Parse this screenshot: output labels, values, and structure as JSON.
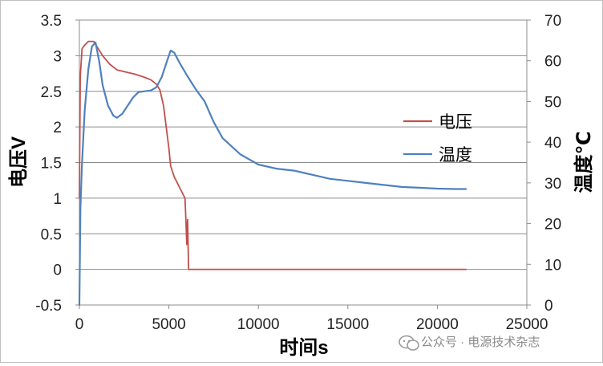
{
  "chart_data": {
    "type": "line",
    "title": "",
    "xlabel": "时间s",
    "ylabel": "电压V",
    "y2label": "温度℃",
    "xlim": [
      0,
      25000
    ],
    "ylim": [
      -0.5,
      3.5
    ],
    "y2lim": [
      0,
      70
    ],
    "x_ticks": [
      "0",
      "5000",
      "10000",
      "15000",
      "20000",
      "25000"
    ],
    "y_ticks": [
      "-0.5",
      "0",
      "0.5",
      "1",
      "1.5",
      "2",
      "2.5",
      "3",
      "3.5"
    ],
    "y2_ticks": [
      "0",
      "10",
      "20",
      "30",
      "40",
      "50",
      "60",
      "70"
    ],
    "grid": "horizontal",
    "legend_position": "right",
    "series": [
      {
        "name": "电压",
        "axis": "left",
        "color": "#c0504d",
        "points": [
          [
            0,
            1.0
          ],
          [
            50,
            2.7
          ],
          [
            150,
            3.1
          ],
          [
            300,
            3.15
          ],
          [
            500,
            3.2
          ],
          [
            800,
            3.2
          ],
          [
            1000,
            3.12
          ],
          [
            1300,
            3.0
          ],
          [
            1700,
            2.88
          ],
          [
            2100,
            2.8
          ],
          [
            2600,
            2.77
          ],
          [
            3100,
            2.74
          ],
          [
            3600,
            2.7
          ],
          [
            4000,
            2.66
          ],
          [
            4300,
            2.6
          ],
          [
            4500,
            2.52
          ],
          [
            4700,
            2.3
          ],
          [
            4900,
            1.9
          ],
          [
            5000,
            1.7
          ],
          [
            5100,
            1.45
          ],
          [
            5300,
            1.3
          ],
          [
            5600,
            1.15
          ],
          [
            5900,
            1.0
          ],
          [
            5950,
            0.7
          ],
          [
            6000,
            0.35
          ],
          [
            6050,
            0.7
          ],
          [
            6100,
            0.0
          ],
          [
            8000,
            0.0
          ],
          [
            12000,
            0.0
          ],
          [
            16000,
            0.0
          ],
          [
            20000,
            0.0
          ],
          [
            21600,
            0.0
          ]
        ]
      },
      {
        "name": "温度",
        "axis": "right",
        "color": "#4f81bd",
        "points": [
          [
            0,
            0
          ],
          [
            60,
            24
          ],
          [
            150,
            35
          ],
          [
            300,
            48
          ],
          [
            500,
            58
          ],
          [
            700,
            63.5
          ],
          [
            900,
            64.5
          ],
          [
            1100,
            60
          ],
          [
            1300,
            54
          ],
          [
            1600,
            49
          ],
          [
            1900,
            46.5
          ],
          [
            2100,
            46
          ],
          [
            2400,
            47
          ],
          [
            2700,
            49
          ],
          [
            3000,
            51
          ],
          [
            3300,
            52.3
          ],
          [
            3600,
            52.5
          ],
          [
            4000,
            52.7
          ],
          [
            4300,
            53.5
          ],
          [
            4600,
            56
          ],
          [
            4900,
            60
          ],
          [
            5100,
            62.5
          ],
          [
            5300,
            62
          ],
          [
            5600,
            59.5
          ],
          [
            6000,
            56.5
          ],
          [
            6500,
            53
          ],
          [
            7000,
            50
          ],
          [
            7500,
            45
          ],
          [
            8000,
            41
          ],
          [
            9000,
            37
          ],
          [
            10000,
            34.5
          ],
          [
            11000,
            33.5
          ],
          [
            12000,
            33
          ],
          [
            13000,
            32
          ],
          [
            14000,
            31
          ],
          [
            15000,
            30.5
          ],
          [
            16000,
            30
          ],
          [
            17000,
            29.5
          ],
          [
            18000,
            29
          ],
          [
            19000,
            28.8
          ],
          [
            20000,
            28.6
          ],
          [
            21000,
            28.5
          ],
          [
            21600,
            28.5
          ]
        ]
      }
    ]
  },
  "watermark": {
    "text": "公众号 · 电源技术杂志"
  }
}
